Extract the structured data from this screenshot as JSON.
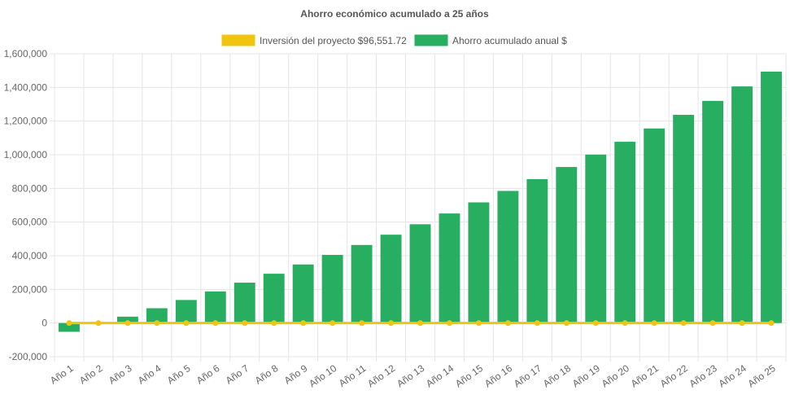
{
  "chart_data": {
    "type": "bar",
    "title": "Ahorro económico acumulado a 25 años",
    "categories": [
      "Año 1",
      "Año 2",
      "Año 3",
      "Año 4",
      "Año 5",
      "Año 6",
      "Año 7",
      "Año 8",
      "Año 9",
      "Año 10",
      "Año 11",
      "Año 12",
      "Año 13",
      "Año 14",
      "Año 15",
      "Año 16",
      "Año 17",
      "Año 18",
      "Año 19",
      "Año 20",
      "Año 21",
      "Año 22",
      "Año 23",
      "Año 24",
      "Año 25"
    ],
    "series": [
      {
        "name": "Inversión del proyecto $96,551.72",
        "type": "line",
        "color": "#f1c40f",
        "values": [
          0,
          0,
          0,
          0,
          0,
          0,
          0,
          0,
          0,
          0,
          0,
          0,
          0,
          0,
          0,
          0,
          0,
          0,
          0,
          0,
          0,
          0,
          0,
          0,
          0
        ]
      },
      {
        "name": "Ahorro acumulado anual $",
        "type": "bar",
        "color": "#27ae60",
        "values": [
          -52000,
          0,
          38000,
          88000,
          137000,
          188000,
          240000,
          293000,
          348000,
          405000,
          464000,
          525000,
          587000,
          651000,
          717000,
          785000,
          855000,
          927000,
          1001000,
          1077000,
          1156000,
          1237000,
          1320000,
          1406000,
          1494000
        ]
      }
    ],
    "y_ticks": [
      "1,600,000",
      "1,400,000",
      "1,200,000",
      "1,000,000",
      "800,000",
      "600,000",
      "400,000",
      "200,000",
      "0",
      "-200,000"
    ],
    "ylim": [
      -200000,
      1600000
    ],
    "xlabel": "",
    "ylabel": "",
    "grid": true,
    "legend_position": "top"
  }
}
